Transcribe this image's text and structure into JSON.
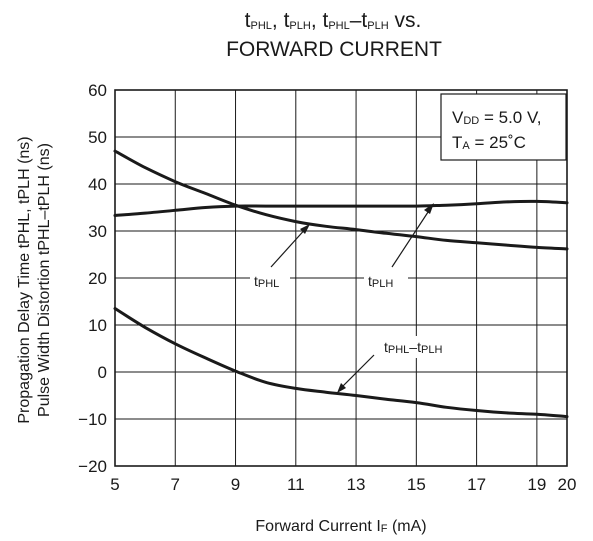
{
  "chart_data": {
    "type": "line",
    "title": {
      "line1": [
        {
          "main": "t",
          "sub": "PHL"
        },
        {
          "text": ", "
        },
        {
          "main": "t",
          "sub": "PLH"
        },
        {
          "text": ", "
        },
        {
          "main": "t",
          "sub": "PHL"
        },
        {
          "text": "–"
        },
        {
          "main": "t",
          "sub": "PLH"
        },
        {
          "text": " vs."
        }
      ],
      "line2": "FORWARD CURRENT"
    },
    "xlabel": {
      "text": "Forward Current  I",
      "sub": "F",
      "unit": " (mA)"
    },
    "ylabel_line1": "Propagation Delay Time  tPHL, tPLH (ns)",
    "ylabel_line2": "Pulse Width Distortion  tPHL–tPLH (ns)",
    "xlim": [
      5,
      20
    ],
    "ylim": [
      -20,
      60
    ],
    "x_ticks": [
      5,
      7,
      9,
      11,
      13,
      15,
      17,
      19,
      20
    ],
    "x_tick_labels": [
      "5",
      "7",
      "9",
      "11",
      "13",
      "15",
      "17",
      "19",
      "20"
    ],
    "y_ticks": [
      60,
      50,
      40,
      30,
      20,
      10,
      0,
      -10,
      -20
    ],
    "y_tick_labels": [
      "60",
      "50",
      "40",
      "30",
      "20",
      "10",
      "0",
      "−10",
      "−20"
    ],
    "grid": true,
    "conditions": {
      "line1": {
        "main": "V",
        "sub": "DD",
        "rest": " = 5.0 V,"
      },
      "line2": {
        "main": "T",
        "sub": "A",
        "rest": " = 25˚C"
      }
    },
    "series": [
      {
        "name": "tPHL",
        "label": {
          "main": "t",
          "sub": "PHL"
        },
        "x": [
          5,
          6,
          7,
          8,
          9,
          10,
          11,
          12,
          13,
          14,
          15,
          16,
          17,
          18,
          19,
          20
        ],
        "y": [
          47,
          43.5,
          40.5,
          38,
          35.5,
          33.5,
          32,
          31,
          30.3,
          29.5,
          28.8,
          28,
          27.5,
          27,
          26.5,
          26.2
        ]
      },
      {
        "name": "tPLH",
        "label": {
          "main": "t",
          "sub": "PLH"
        },
        "x": [
          5,
          6,
          7,
          8,
          9,
          10,
          11,
          12,
          13,
          14,
          15,
          16,
          17,
          18,
          19,
          20
        ],
        "y": [
          33.3,
          33.8,
          34.4,
          35,
          35.3,
          35.3,
          35.3,
          35.3,
          35.3,
          35.3,
          35.3,
          35.5,
          35.8,
          36.2,
          36.3,
          36
        ]
      },
      {
        "name": "tPHL–tPLH",
        "label": {
          "main": "t",
          "sub": "PHL",
          "mid": "–",
          "main2": "t",
          "sub2": "PLH"
        },
        "x": [
          5,
          6,
          7,
          8,
          9,
          10,
          11,
          12,
          13,
          14,
          15,
          16,
          17,
          18,
          19,
          20
        ],
        "y": [
          13.5,
          9.5,
          6,
          3,
          0.2,
          -2.2,
          -3.5,
          -4.3,
          -5,
          -5.8,
          -6.5,
          -7.5,
          -8.2,
          -8.7,
          -9,
          -9.5
        ]
      }
    ]
  }
}
